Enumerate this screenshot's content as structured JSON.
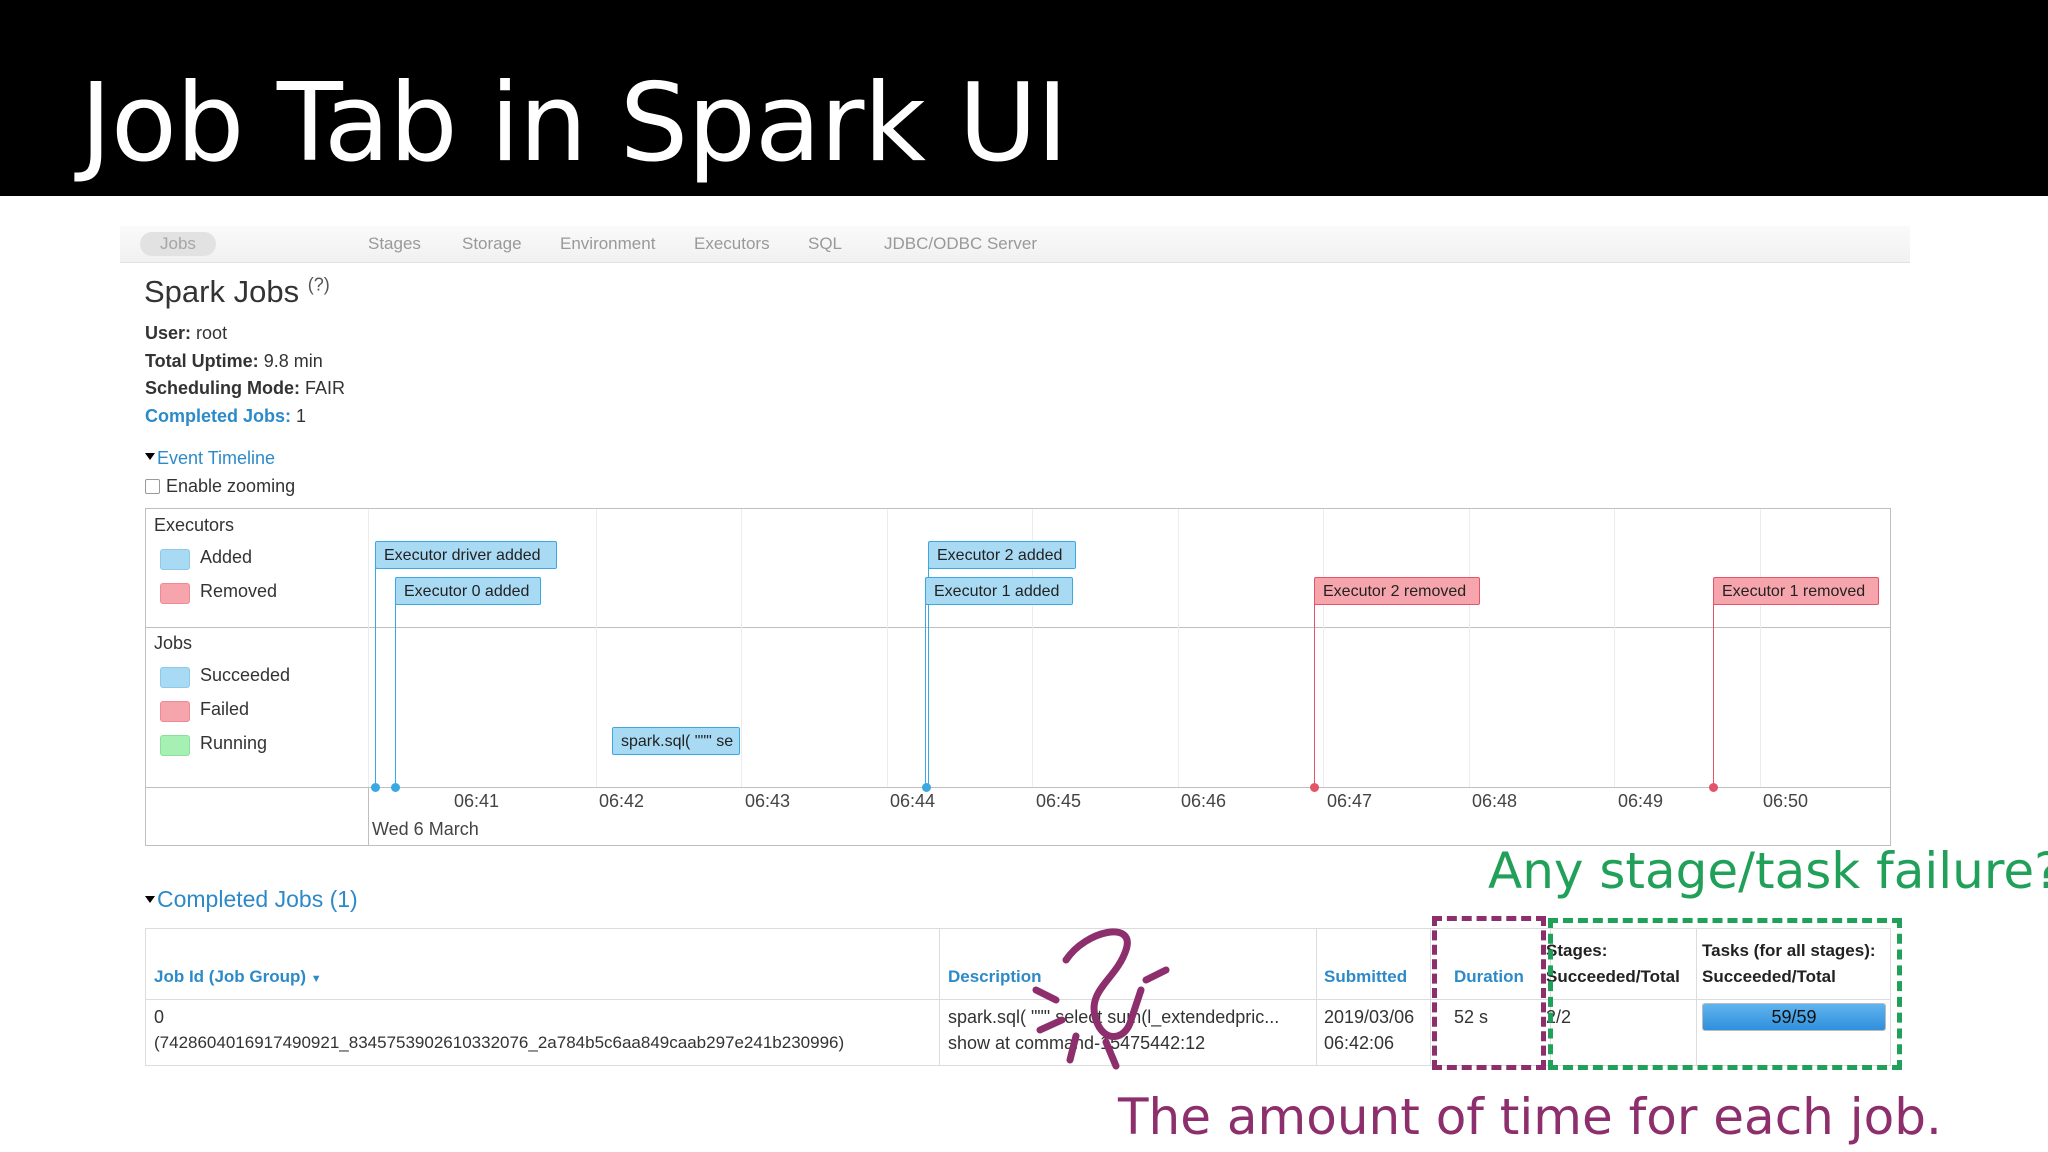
{
  "slide": {
    "title": "Job Tab in Spark UI"
  },
  "nav": {
    "tabs": [
      {
        "label": "Jobs",
        "active": true
      },
      {
        "label": "Stages"
      },
      {
        "label": "Storage"
      },
      {
        "label": "Environment"
      },
      {
        "label": "Executors"
      },
      {
        "label": "SQL"
      },
      {
        "label": "JDBC/ODBC Server"
      }
    ]
  },
  "page": {
    "title": "Spark Jobs",
    "help": "(?)",
    "user_label": "User:",
    "user_value": "root",
    "uptime_label": "Total Uptime:",
    "uptime_value": "9.8 min",
    "mode_label": "Scheduling Mode:",
    "mode_value": "FAIR",
    "completed_label": "Completed Jobs:",
    "completed_value": "1"
  },
  "timeline": {
    "toggle_label": "Event Timeline",
    "zoom_label": "Enable zooming",
    "executors_heading": "Executors",
    "executors_legend": [
      "Added",
      "Removed"
    ],
    "jobs_heading": "Jobs",
    "jobs_legend": [
      "Succeeded",
      "Failed",
      "Running"
    ],
    "ticks": [
      "06:41",
      "06:42",
      "06:43",
      "06:44",
      "06:45",
      "06:46",
      "06:47",
      "06:48",
      "06:49",
      "06:50"
    ],
    "date": "Wed 6 March",
    "events": [
      {
        "label": "Executor driver added",
        "kind": "added"
      },
      {
        "label": "Executor 0 added",
        "kind": "added"
      },
      {
        "label": "Executor 2 added",
        "kind": "added"
      },
      {
        "label": "Executor 1 added",
        "kind": "added"
      },
      {
        "label": "Executor 2 removed",
        "kind": "removed"
      },
      {
        "label": "Executor 1 removed",
        "kind": "removed"
      }
    ],
    "job_event": "spark.sql( \"\"\" se",
    "colors": {
      "added": "#a8daf4",
      "removed": "#f7a5ad",
      "running": "#a7f0b4"
    }
  },
  "completed_jobs": {
    "title": "Completed Jobs (1)",
    "headers": {
      "job_id": "Job Id (Job Group)",
      "description": "Description",
      "submitted": "Submitted",
      "duration": "Duration",
      "stages_l1": "Stages:",
      "stages_l2": "Succeeded/Total",
      "tasks_l1": "Tasks (for all stages):",
      "tasks_l2": "Succeeded/Total"
    },
    "row": {
      "job_id": "0",
      "job_group": "(7428604016917490921_8345753902610332076_2a784b5c6aa849caab297e241b230996)",
      "description": "spark.sql( \"\"\" select sum(l_extendedpric...",
      "description_link": "show at command-15475442:12",
      "submitted_date": "2019/03/06",
      "submitted_time": "06:42:06",
      "duration": "52 s",
      "stages": "2/2",
      "tasks": "59/59",
      "tasks_progress": 1.0
    }
  },
  "annotations": {
    "green": "Any stage/task failure?",
    "purple": "The amount of time for each job.",
    "colors": {
      "green": "#21a05a",
      "purple": "#8c2f6c"
    }
  }
}
